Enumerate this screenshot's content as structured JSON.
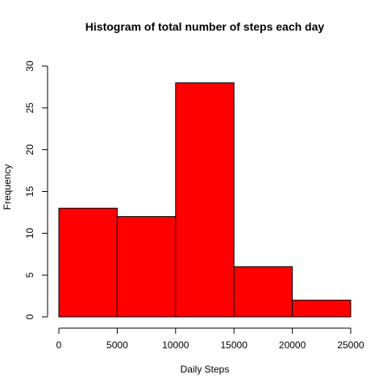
{
  "chart_data": {
    "type": "bar",
    "title": "Histogram of total number of steps each day",
    "xlabel": "Daily Steps",
    "ylabel": "Frequency",
    "bins": [
      {
        "from": 0,
        "to": 5000,
        "count": 13
      },
      {
        "from": 5000,
        "to": 10000,
        "count": 12
      },
      {
        "from": 10000,
        "to": 15000,
        "count": 28
      },
      {
        "from": 15000,
        "to": 20000,
        "count": 6
      },
      {
        "from": 20000,
        "to": 25000,
        "count": 2
      }
    ],
    "xlim": [
      0,
      25000
    ],
    "ylim": [
      0,
      30
    ],
    "x_ticks": [
      0,
      5000,
      10000,
      15000,
      20000,
      25000
    ],
    "y_ticks": [
      0,
      5,
      10,
      15,
      20,
      25,
      30
    ],
    "bar_color": "#ff0000",
    "grid": false
  }
}
